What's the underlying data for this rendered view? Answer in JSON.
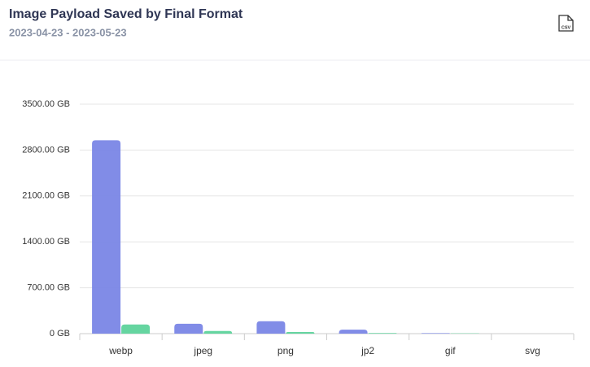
{
  "export_button": {
    "label": "CSV"
  },
  "chart_data": {
    "type": "bar",
    "title": "Image Payload Saved by Final Format",
    "subtitle": "2023-04-23 - 2023-05-23",
    "categories": [
      "webp",
      "jpeg",
      "png",
      "jp2",
      "gif",
      "svg"
    ],
    "series": [
      {
        "color": "#7a86e6",
        "values": [
          2950,
          150,
          190,
          60,
          8,
          0
        ]
      },
      {
        "color": "#5dd39b",
        "values": [
          140,
          40,
          25,
          10,
          5,
          0
        ]
      }
    ],
    "ylim": [
      0,
      3500
    ],
    "yticks": [
      {
        "value": 0,
        "label": "0 GB"
      },
      {
        "value": 700,
        "label": "700.00 GB"
      },
      {
        "value": 1400,
        "label": "1400.00 GB"
      },
      {
        "value": 2100,
        "label": "2100.00 GB"
      },
      {
        "value": 2800,
        "label": "2800.00 GB"
      },
      {
        "value": 3500,
        "label": "3500.00 GB"
      }
    ],
    "grid": true
  }
}
